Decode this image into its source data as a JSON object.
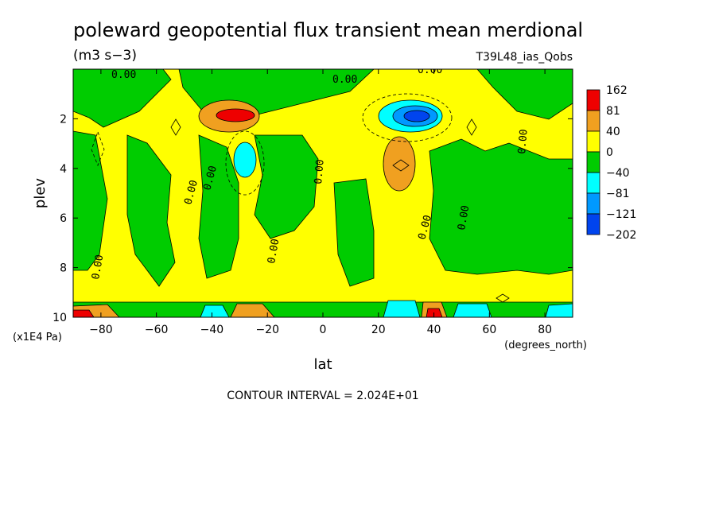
{
  "chart_data": {
    "type": "heatmap",
    "title": "poleward geopotential flux transient mean merdional",
    "units": "(m3 s−3)",
    "dataset_label": "T39L48_ias_Qobs",
    "xlabel": "lat",
    "xunits": "(degrees_north)",
    "ylabel": "plev",
    "yunits": "(x1E4 Pa)",
    "xlim": [
      -90,
      90
    ],
    "ylim": [
      10,
      0
    ],
    "x_ticks": [
      -80,
      -60,
      -40,
      -20,
      0,
      20,
      40,
      60,
      80
    ],
    "x_tick_labels": [
      "−80",
      "−60",
      "−40",
      "−20",
      "0",
      "20",
      "40",
      "60",
      "80"
    ],
    "y_ticks": [
      2,
      4,
      6,
      8,
      10
    ],
    "y_tick_labels": [
      "2",
      "4",
      "6",
      "8",
      "10"
    ],
    "contour_interval_text": "CONTOUR INTERVAL = 2.024E+01",
    "contour_zero_label": "0.00",
    "colorbar": {
      "labels": [
        "162",
        "81",
        "40",
        "0",
        "−40",
        "−81",
        "−121",
        "−202"
      ],
      "colors": [
        "#ee0000",
        "#f0a020",
        "#ffff00",
        "#00cc00",
        "#00ffff",
        "#0099ff",
        "#0044ee"
      ],
      "color_levels": [
        "81 to 162",
        "40 to 81",
        "0 to 40",
        "−40 to 0",
        "−81 to −40",
        "−121 to −81",
        "−202 to −121"
      ]
    },
    "features": [
      {
        "kind": "max",
        "lat": -32,
        "plev": 2.0,
        "value": 150
      },
      {
        "kind": "min",
        "lat": 35,
        "plev": 2.0,
        "value": -180
      },
      {
        "kind": "max",
        "lat": 29,
        "plev": 4.0,
        "value": 60
      },
      {
        "kind": "min",
        "lat": -27,
        "plev": 4.0,
        "value": -60
      },
      {
        "kind": "max",
        "lat": -85,
        "plev": 9.9,
        "value": 120
      },
      {
        "kind": "max",
        "lat": 40,
        "plev": 9.9,
        "value": 110
      },
      {
        "kind": "min",
        "lat": 30,
        "plev": 9.8,
        "value": -90
      },
      {
        "kind": "min",
        "lat": 55,
        "plev": 9.8,
        "value": -70
      }
    ]
  }
}
